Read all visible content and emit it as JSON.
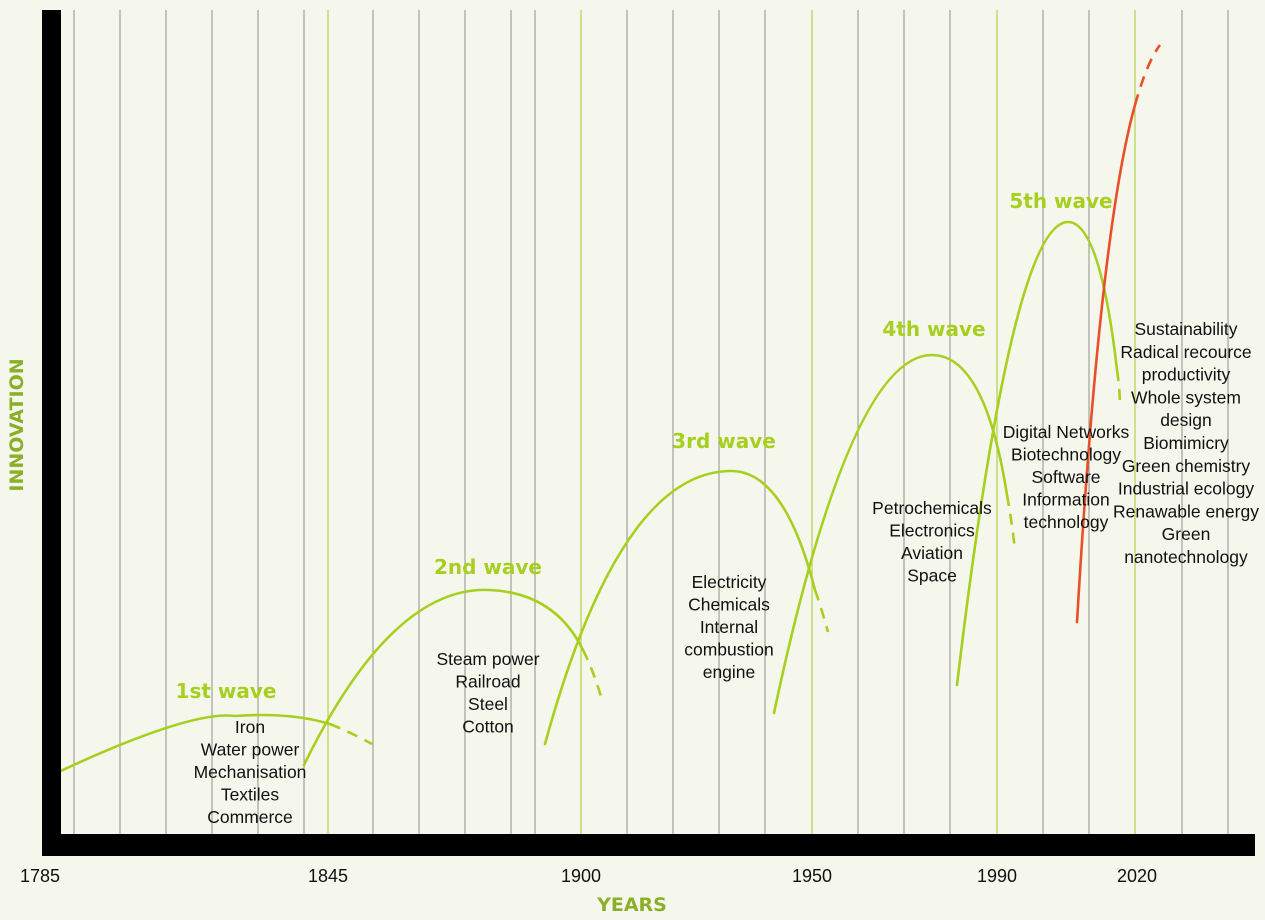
{
  "chart_data": {
    "type": "line",
    "title": "",
    "xlabel": "YEARS",
    "ylabel": "INNOVATION",
    "x_tick_labels": [
      "1785",
      "1845",
      "1900",
      "1950",
      "1990",
      "2020"
    ],
    "grid": true,
    "series": [
      {
        "name": "1st wave",
        "color": "#a6cf1f",
        "items": [
          "Iron",
          "Water power",
          "Mechanisation",
          "Textiles",
          "Commerce"
        ]
      },
      {
        "name": "2nd wave",
        "color": "#a6cf1f",
        "items": [
          "Steam power",
          "Railroad",
          "Steel",
          "Cotton"
        ]
      },
      {
        "name": "3rd wave",
        "color": "#a6cf1f",
        "items": [
          "Electricity",
          "Chemicals",
          "Internal",
          "combustion",
          "engine"
        ]
      },
      {
        "name": "4th wave",
        "color": "#a6cf1f",
        "items": [
          "Petrochemicals",
          "Electronics",
          "Aviation",
          "Space"
        ]
      },
      {
        "name": "5th wave",
        "color": "#a6cf1f",
        "items": [
          "Digital Networks",
          "Biotechnology",
          "Software",
          "Information",
          "technology"
        ]
      },
      {
        "name": "",
        "color": "#e8502a",
        "items": [
          "Sustainability",
          "Radical recource",
          "productivity",
          "Whole system",
          "design",
          "Biomimicry",
          "Green chemistry",
          "Industrial ecology",
          "Renawable energy",
          "Green",
          "nanotechnology"
        ]
      }
    ]
  }
}
